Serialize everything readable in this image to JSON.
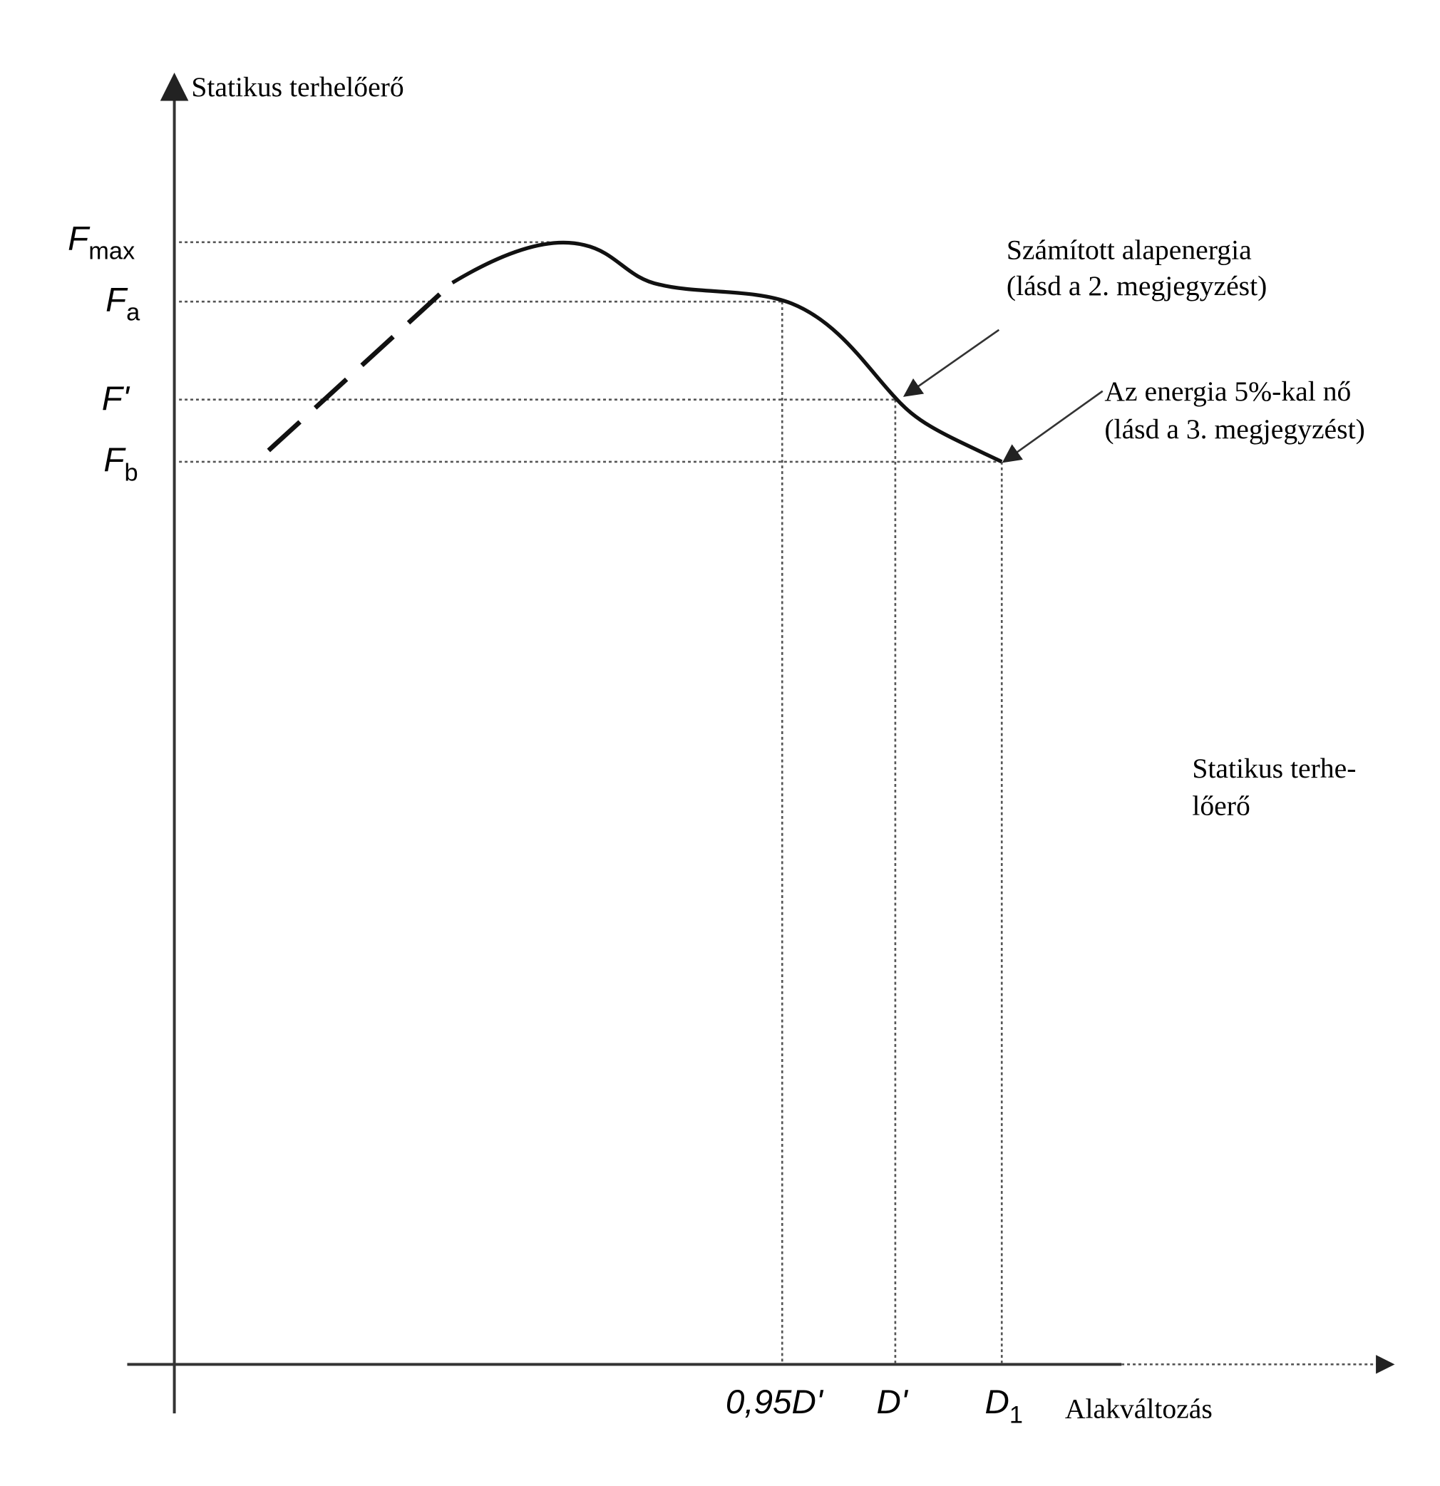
{
  "y_axis_label": "Statikus terhelőerő",
  "x_axis_label": "Alakváltozás",
  "y_labels": [
    {
      "main": "F",
      "sub": "max"
    },
    {
      "main": "F",
      "sub": "a"
    },
    {
      "main": "F'"
    },
    {
      "main": "F",
      "sub": "b"
    }
  ],
  "x_labels": [
    {
      "main": "0,95D'"
    },
    {
      "main": "D'"
    },
    {
      "main": "D",
      "sub": "1"
    }
  ],
  "annotations": [
    {
      "lines": [
        "Számított alapenergia",
        "(lásd a 2. megjegyzést)"
      ]
    },
    {
      "lines": [
        "Az energia 5%-kal nő",
        "(lásd a 3. megjegyzést)"
      ]
    },
    {
      "lines": [
        "Statikus terhe-",
        "lőerő"
      ]
    }
  ]
}
